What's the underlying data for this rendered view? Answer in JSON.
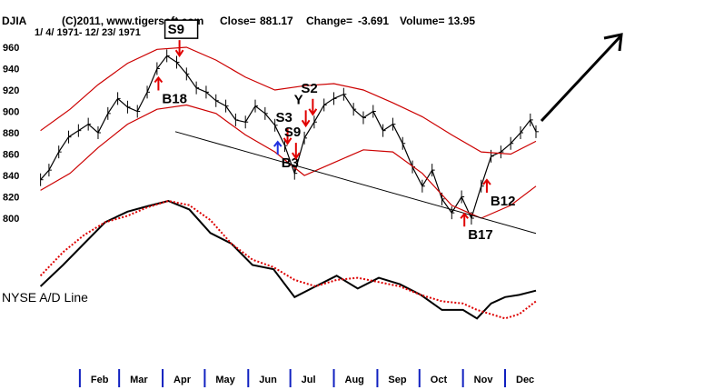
{
  "header": {
    "symbol": "DJIA",
    "source": "(C)2011, www.tigersoft.com",
    "close_label": "Close=",
    "close_value": "881.17",
    "change_label": "Change=",
    "change_value": "-3.691",
    "volume_label": "Volume=",
    "volume_value": "13.95",
    "date_range": "1/ 4/ 1971- 12/ 23/ 1971"
  },
  "chart_data": {
    "type": "line",
    "title": "DJIA",
    "y_ticks": [
      800,
      820,
      840,
      860,
      880,
      900,
      920,
      940,
      960
    ],
    "ylim": [
      780,
      972
    ],
    "x_ticks": [
      "Feb",
      "Mar",
      "Apr",
      "May",
      "Jun",
      "Jul",
      "Aug",
      "Sep",
      "Oct",
      "Nov",
      "Dec"
    ],
    "x_range_days": [
      1,
      357
    ],
    "series": [
      {
        "name": "DJIA",
        "color": "#000000",
        "x": [
          4,
          10,
          17,
          24,
          31,
          38,
          45,
          52,
          59,
          66,
          73,
          80,
          87,
          94,
          101,
          108,
          115,
          122,
          129,
          136,
          143,
          150,
          157,
          164,
          171,
          178,
          185,
          192,
          199,
          206,
          213,
          220,
          227,
          234,
          241,
          248,
          255,
          262,
          269,
          276,
          283,
          290,
          297,
          304,
          311,
          318,
          325,
          332,
          339,
          346,
          353,
          357
        ],
        "y": [
          836,
          845,
          862,
          876,
          882,
          888,
          880,
          898,
          912,
          904,
          900,
          918,
          940,
          952,
          946,
          935,
          922,
          918,
          910,
          905,
          892,
          890,
          905,
          898,
          887,
          868,
          842,
          875,
          890,
          906,
          912,
          916,
          902,
          894,
          900,
          882,
          888,
          870,
          848,
          830,
          845,
          818,
          805,
          820,
          800,
          830,
          858,
          862,
          870,
          880,
          892,
          881
        ]
      },
      {
        "name": "Upper Band",
        "color": "#cc0000",
        "x": [
          4,
          25,
          45,
          66,
          87,
          108,
          129,
          150,
          171,
          192,
          213,
          234,
          255,
          276,
          297,
          318,
          339,
          357
        ],
        "y": [
          882,
          902,
          925,
          945,
          958,
          960,
          948,
          932,
          920,
          924,
          926,
          920,
          908,
          895,
          878,
          862,
          860,
          872
        ]
      },
      {
        "name": "Lower Band",
        "color": "#cc0000",
        "x": [
          4,
          25,
          45,
          66,
          87,
          108,
          129,
          150,
          171,
          192,
          213,
          234,
          255,
          276,
          297,
          318,
          339,
          357
        ],
        "y": [
          826,
          842,
          866,
          888,
          902,
          906,
          898,
          878,
          862,
          840,
          852,
          864,
          862,
          842,
          812,
          800,
          812,
          830
        ]
      },
      {
        "name": "NYSE A/D Line",
        "color": "#000000",
        "x": [
          4,
          20,
          35,
          50,
          66,
          80,
          95,
          110,
          125,
          140,
          155,
          170,
          185,
          200,
          215,
          230,
          245,
          260,
          275,
          290,
          305,
          315,
          325,
          335,
          345,
          357
        ],
        "y": [
          800,
          820,
          840,
          860,
          870,
          875,
          880,
          872,
          850,
          840,
          820,
          816,
          790,
          800,
          810,
          798,
          808,
          802,
          792,
          778,
          778,
          770,
          784,
          790,
          792,
          796
        ]
      },
      {
        "name": "A/D MA",
        "color": "#dd0000",
        "x": [
          4,
          20,
          35,
          50,
          66,
          80,
          95,
          110,
          125,
          140,
          155,
          170,
          185,
          200,
          215,
          230,
          245,
          260,
          275,
          290,
          305,
          315,
          325,
          335,
          345,
          357
        ],
        "y": [
          810,
          832,
          848,
          860,
          866,
          874,
          880,
          876,
          862,
          840,
          825,
          818,
          806,
          800,
          806,
          808,
          804,
          800,
          792,
          786,
          784,
          778,
          774,
          770,
          774,
          786
        ]
      }
    ],
    "trendline": {
      "from": [
        100,
        881
      ],
      "to": [
        357,
        790
      ]
    },
    "signals": [
      {
        "label": "S9",
        "type": "sell",
        "x": 103,
        "boxed": true
      },
      {
        "label": "B18",
        "type": "buy",
        "x": 88
      },
      {
        "label": "B3",
        "type": "buy",
        "x": 173
      },
      {
        "label": "S3",
        "type": "sell",
        "x": 180
      },
      {
        "label": "S9",
        "type": "sell",
        "x": 186
      },
      {
        "label": "Y",
        "type": "sell",
        "x": 193
      },
      {
        "label": "S2",
        "type": "sell",
        "x": 198
      },
      {
        "label": "B17",
        "type": "buy",
        "x": 306
      },
      {
        "label": "B12",
        "type": "buy",
        "x": 322
      }
    ],
    "annotations": [
      {
        "text": "NYSE A/D Line"
      }
    ],
    "grid": false
  }
}
